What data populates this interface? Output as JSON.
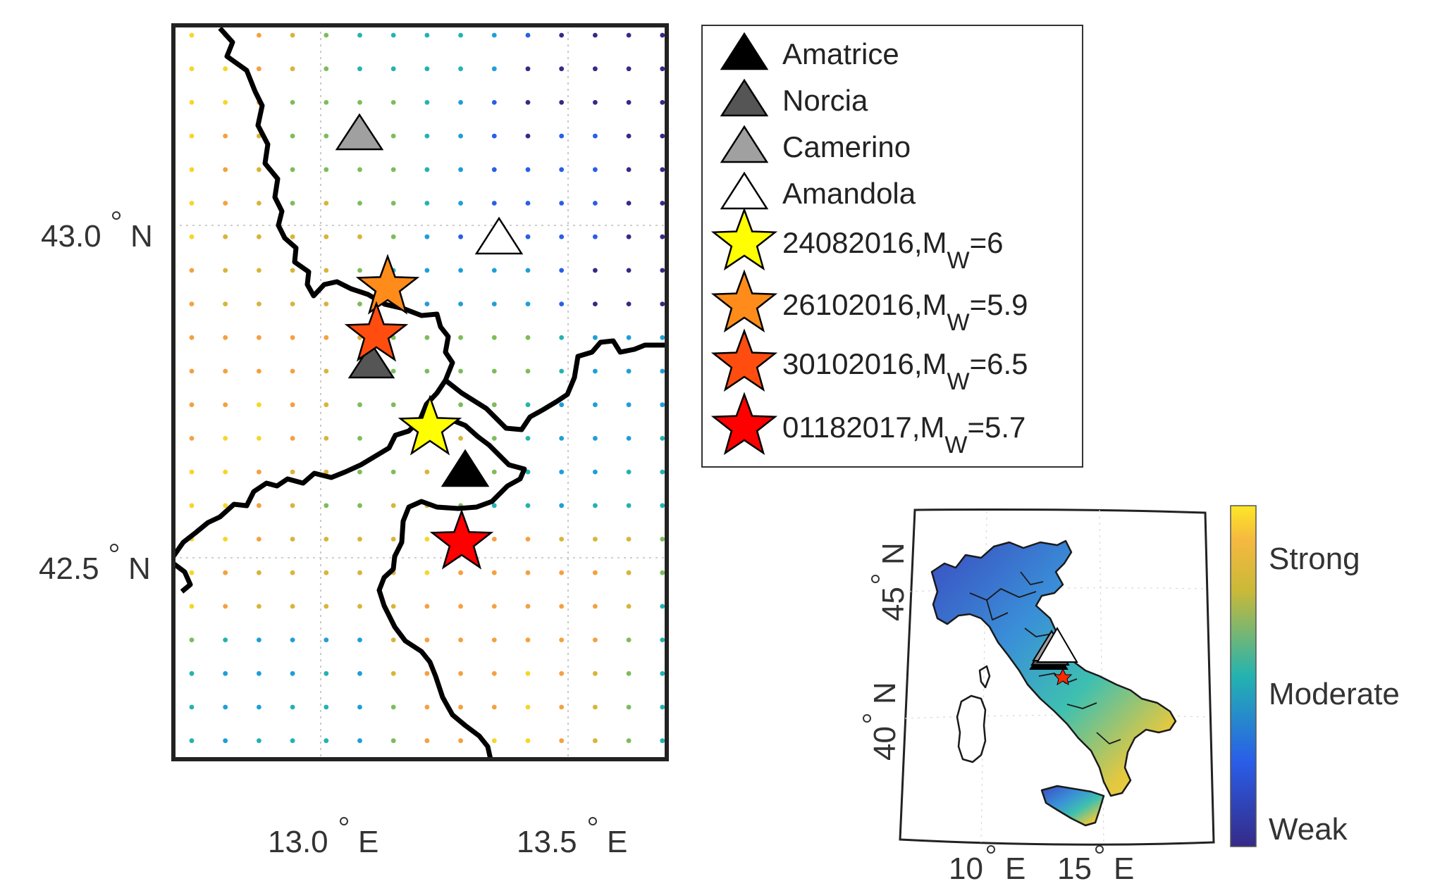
{
  "main_map": {
    "lat_labels": [
      {
        "deg": "43.0",
        "suffix": "N"
      },
      {
        "deg": "42.5",
        "suffix": "N"
      }
    ],
    "lon_labels": [
      {
        "deg": "13.0",
        "suffix": "E"
      },
      {
        "deg": "13.5",
        "suffix": "E"
      }
    ]
  },
  "legend": {
    "items": [
      {
        "label": "Amatrice",
        "marker": "triangle",
        "color": "#000000"
      },
      {
        "label": "Norcia",
        "marker": "triangle",
        "color": "#555555"
      },
      {
        "label": "Camerino",
        "marker": "triangle",
        "color": "#a0a0a0"
      },
      {
        "label": "Amandola",
        "marker": "triangle",
        "color": "#ffffff"
      },
      {
        "label": "24082016,M",
        "sub": "W",
        "after": "=6",
        "marker": "star",
        "color": "#ffff00"
      },
      {
        "label": "26102016,M",
        "sub": "W",
        "after": "=5.9",
        "marker": "star",
        "color": "#ff8c1a"
      },
      {
        "label": "30102016,M",
        "sub": "W",
        "after": "=6.5",
        "marker": "star",
        "color": "#ff4d10"
      },
      {
        "label": "01182017,M",
        "sub": "W",
        "after": "=5.7",
        "marker": "star",
        "color": "#ff0000"
      }
    ]
  },
  "inset_map": {
    "lat_labels": [
      {
        "deg": "45",
        "suffix": "N"
      },
      {
        "deg": "40",
        "suffix": "N"
      }
    ],
    "lon_labels": [
      {
        "deg": "10",
        "suffix": "E"
      },
      {
        "deg": "15",
        "suffix": "E"
      }
    ]
  },
  "colorbar": {
    "labels": [
      "Strong",
      "Moderate",
      "Weak"
    ],
    "colors": [
      "#fde725",
      "#f5b940",
      "#2db7a8",
      "#3a6fe0",
      "#352a87"
    ]
  }
}
